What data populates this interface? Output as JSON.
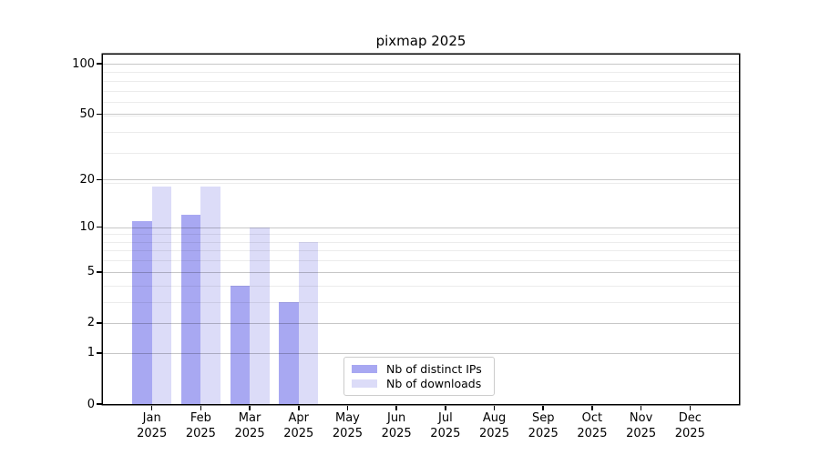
{
  "figure": {
    "background": "#ffffff"
  },
  "chart_data": {
    "type": "bar",
    "title": "pixmap 2025",
    "x_categories": [
      "Jan",
      "Feb",
      "Mar",
      "Apr",
      "May",
      "Jun",
      "Jul",
      "Aug",
      "Sep",
      "Oct",
      "Nov",
      "Dec"
    ],
    "x_sublabel": "2025",
    "y_ticks": [
      0,
      1,
      2,
      5,
      10,
      20,
      50,
      100
    ],
    "y_scale": "log10(v+1)",
    "ylim": [
      0,
      100
    ],
    "grid": true,
    "minor_grid_plotted_values": [
      4,
      5,
      7,
      8,
      9,
      10,
      20,
      30,
      40,
      50,
      60,
      70,
      80,
      90
    ],
    "legend_position": "lower-center",
    "series": [
      {
        "name": "Nb of distinct IPs",
        "color": "#a8a8f2",
        "values": [
          11,
          12,
          4,
          3,
          null,
          null,
          null,
          null,
          null,
          null,
          null,
          null
        ]
      },
      {
        "name": "Nb of downloads",
        "color": "#dcdcf8",
        "values": [
          18,
          18,
          10,
          8,
          null,
          null,
          null,
          null,
          null,
          null,
          null,
          null
        ]
      }
    ],
    "colors": {
      "axis": "#000000",
      "major_grid": "rgba(0,0,0,0.22)",
      "minor_grid": "rgba(0,0,0,0.075)",
      "legend_border": "#cccccc"
    }
  }
}
